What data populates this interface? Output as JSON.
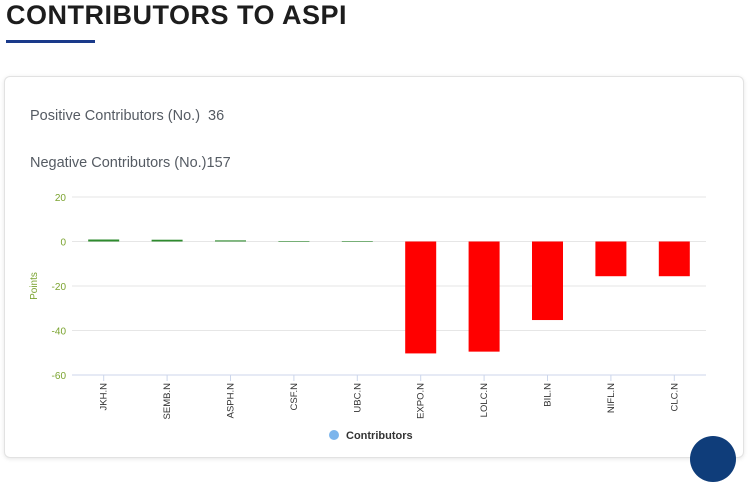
{
  "header": {
    "title": "CONTRIBUTORS TO ASPI"
  },
  "stats": {
    "positive_label": "Positive Contributors (No.)",
    "positive_value": "36",
    "negative_label": "Negative Contributors (No.)",
    "negative_value": "157"
  },
  "colors": {
    "positive": "#2e8b2e",
    "negative": "#ff0000",
    "axis_text": "#7aa32f",
    "title_accent": "#1a3a8a"
  },
  "chart_data": {
    "type": "bar",
    "categories": [
      "JKH.N",
      "SEMB.N",
      "ASPH.N",
      "CSF.N",
      "UBC.N",
      "EXPO.N",
      "LOLC.N",
      "BIL.N",
      "NIFL.N",
      "CLC.N"
    ],
    "series": [
      {
        "name": "Contributors",
        "values": [
          0.9,
          0.8,
          0.5,
          0.1,
          0.05,
          -50.3,
          -49.5,
          -35.3,
          -15.6,
          -15.6
        ]
      }
    ],
    "ylabel": "Points",
    "xlabel": "",
    "ylim": [
      -60,
      20
    ],
    "yticks": [
      20,
      0,
      -20,
      -40,
      -60
    ],
    "grid": true,
    "legend": {
      "position": "bottom",
      "label": "Contributors",
      "marker_color": "#7cb5ec"
    }
  }
}
